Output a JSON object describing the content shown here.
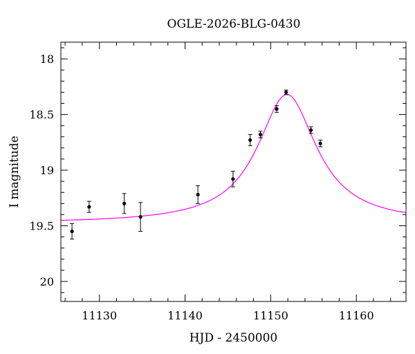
{
  "chart_data": {
    "type": "scatter",
    "title": "OGLE-2026-BLG-0430",
    "xlabel": "HJD - 2450000",
    "ylabel": "I magnitude",
    "xlim": [
      11125.5,
      11165.8
    ],
    "ylim": [
      20.18,
      17.85
    ],
    "y_inverted": true,
    "x_ticks": [
      "11130",
      "11140",
      "11150",
      "11160"
    ],
    "y_ticks": [
      "18",
      "18.5",
      "19",
      "19.5",
      "20"
    ],
    "grid": false,
    "legend": "none",
    "series": [
      {
        "type": "errorbar",
        "color": "#000000",
        "points": [
          {
            "x": 11126.8,
            "y": 19.55,
            "err": 0.07
          },
          {
            "x": 11128.8,
            "y": 19.33,
            "err": 0.05
          },
          {
            "x": 11132.9,
            "y": 19.3,
            "err": 0.09
          },
          {
            "x": 11134.8,
            "y": 19.42,
            "err": 0.13
          },
          {
            "x": 11141.5,
            "y": 19.22,
            "err": 0.08
          },
          {
            "x": 11145.6,
            "y": 19.08,
            "err": 0.07
          },
          {
            "x": 11147.6,
            "y": 18.73,
            "err": 0.05
          },
          {
            "x": 11148.8,
            "y": 18.68,
            "err": 0.03
          },
          {
            "x": 11150.7,
            "y": 18.45,
            "err": 0.03
          },
          {
            "x": 11151.8,
            "y": 18.3,
            "err": 0.02
          },
          {
            "x": 11154.7,
            "y": 18.64,
            "err": 0.03
          },
          {
            "x": 11155.8,
            "y": 18.76,
            "err": 0.03
          }
        ]
      },
      {
        "type": "model",
        "color": "#ff00ff",
        "peak_x": 11151.9,
        "peak_y": 18.32,
        "baseline_y": 19.48,
        "width": 4.2
      }
    ]
  }
}
